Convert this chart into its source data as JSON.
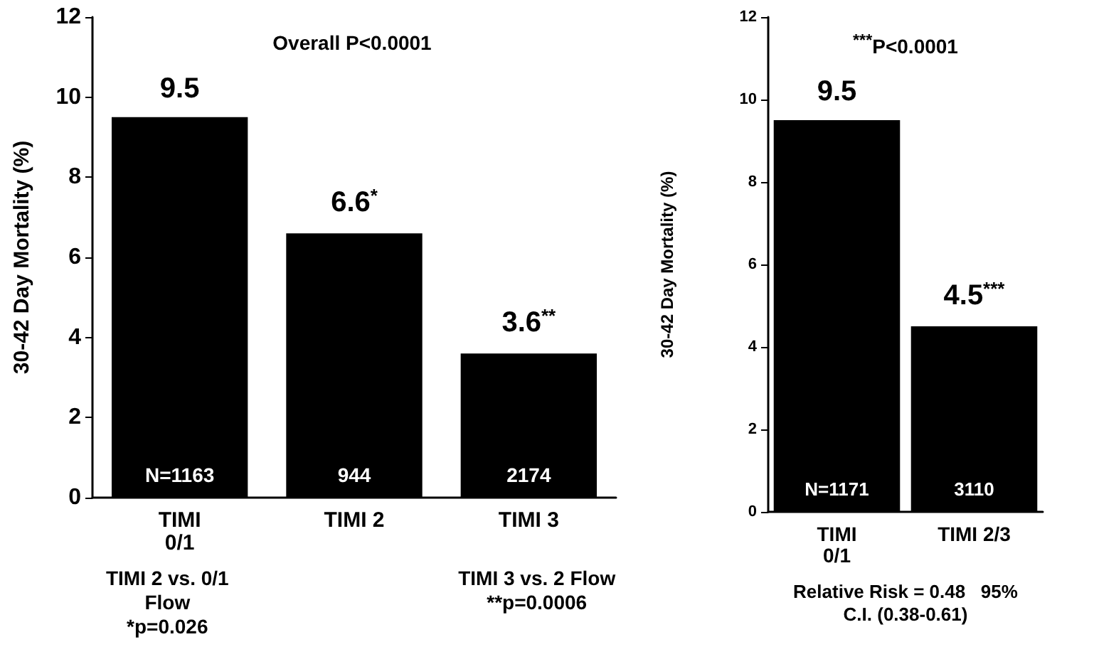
{
  "chart_data": [
    {
      "type": "bar",
      "title": "Overall P<0.0001",
      "ylabel": "30-42 Day Mortality (%)",
      "categories": [
        "TIMI\n0/1",
        "TIMI 2",
        "TIMI 3"
      ],
      "values": [
        9.5,
        6.6,
        3.6
      ],
      "color": "#000000",
      "value_labels": [
        "9.5",
        "6.6$^{*}$",
        "3.6$^{**}$"
      ],
      "ylim": [
        0,
        12
      ],
      "yticks": [
        0,
        2,
        4,
        6,
        8,
        10,
        12
      ],
      "annotations": [
        "N=1163",
        "944",
        "2174",
        "TIMI 2 vs. 0/1\nFlow\n*p=0.026",
        "TIMI 3 vs. 2 Flow\n**p=0.0006"
      ]
    },
    {
      "type": "bar",
      "title": "$^{***}$P<0.0001",
      "ylabel": "30-42 Day Mortality (%)",
      "categories": [
        "TIMI\n0/1",
        "TIMI 2/3"
      ],
      "values": [
        9.5,
        4.5
      ],
      "color": "#000000",
      "value_labels": [
        "9.5",
        "4.5$^{***}$"
      ],
      "ylim": [
        0,
        12
      ],
      "yticks": [
        0,
        2,
        4,
        6,
        8,
        10,
        12
      ],
      "annotations": [
        "N=1171",
        "3110",
        "Relative Risk = 0.48   95%\nC.I. (0.38-0.61)"
      ]
    }
  ]
}
